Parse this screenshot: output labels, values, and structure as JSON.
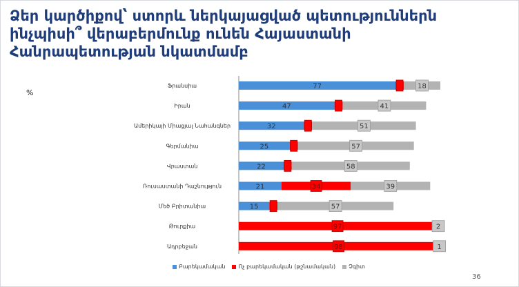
{
  "slide": {
    "title_lines": [
      "Ձեր կարծիքով՝ ստորև ներկայացված պետություններն",
      "ինչպիսի՞ վերաբերմունք ունեն Հայաստանի",
      "Հանրապետության նկատմամբ"
    ],
    "unit": "%",
    "page_number": "36"
  },
  "chart_data": {
    "type": "bar",
    "orientation": "horizontal",
    "stacked": true,
    "categories": [
      "Ֆրանսիա",
      "Իրան",
      "Ամերիկայի Միացյալ Նահանգներ",
      "Գերմանիա",
      "Վրաստան",
      "Ռուսաստանի Դաշնություն",
      "Մեծ Բրիտանիա",
      "Թուրքիա",
      "Ադրբեջան"
    ],
    "series": [
      {
        "name": "Բարեկամական",
        "color": "#4a90d9",
        "values": [
          77,
          47,
          32,
          25,
          22,
          21,
          15,
          0,
          0
        ]
      },
      {
        "name": "Ոչ բարեկամական (թշնամական)",
        "color": "#ff0000",
        "values": [
          null,
          null,
          null,
          null,
          null,
          34,
          null,
          97,
          98
        ]
      },
      {
        "name": "Չգիտ",
        "color": "#b3b3b3",
        "values": [
          18,
          41,
          51,
          57,
          58,
          39,
          57,
          2,
          1
        ]
      }
    ],
    "legend_position": "bottom",
    "grid": false
  }
}
